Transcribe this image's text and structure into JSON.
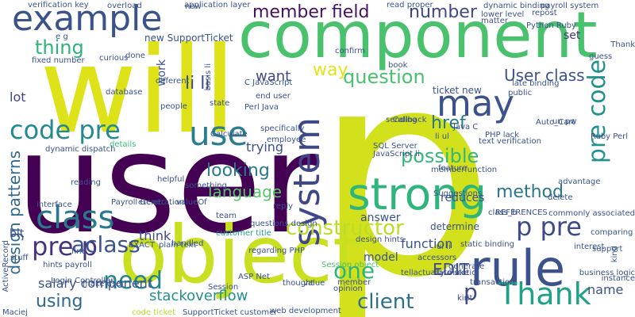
{
  "words": [
    {
      "text": "p",
      "color": "#d2e11b"
    },
    {
      "text": "user",
      "color": "#440154"
    },
    {
      "text": "object",
      "color": "#c8e020"
    },
    {
      "text": "will",
      "color": "#dde318"
    },
    {
      "text": "component",
      "color": "#4ac16d"
    },
    {
      "text": "strong",
      "color": "#2fb47c"
    },
    {
      "text": "rule",
      "color": "#3b528b"
    },
    {
      "text": "may",
      "color": "#3b528b"
    },
    {
      "text": "system",
      "color": "#3f4788"
    },
    {
      "text": "example",
      "color": "#3b528b"
    },
    {
      "text": "class",
      "color": "#2a788e"
    },
    {
      "text": "use",
      "color": "#287d8e"
    },
    {
      "text": "Thank",
      "color": "#1fa187"
    },
    {
      "text": "p pre",
      "color": "#3e4989"
    },
    {
      "text": "pre code",
      "color": "#21918c"
    },
    {
      "text": "code pre",
      "color": "#238a8d"
    },
    {
      "text": "constructor",
      "color": "#bade28"
    },
    {
      "text": "pre p",
      "color": "#46337e"
    },
    {
      "text": "need",
      "color": "#25858e"
    },
    {
      "text": "one",
      "color": "#2fb47c"
    },
    {
      "text": "client",
      "color": "#2d708e"
    },
    {
      "text": "p",
      "color": "#3e4989"
    },
    {
      "text": "question",
      "color": "#4ac16d"
    },
    {
      "text": "possible",
      "color": "#35b779"
    },
    {
      "text": "thing",
      "color": "#2fb47c"
    },
    {
      "text": "aclass",
      "color": "#3b528b"
    },
    {
      "text": "using",
      "color": "#31688e"
    },
    {
      "text": "design patterns",
      "color": "#31688e"
    },
    {
      "text": "member field",
      "color": "#471063"
    },
    {
      "text": "number",
      "color": "#3f4788"
    },
    {
      "text": "li li",
      "color": "#3e4989"
    },
    {
      "text": "language",
      "color": "#54c568"
    },
    {
      "text": "method",
      "color": "#2a788e"
    },
    {
      "text": "looking",
      "color": "#2a788e"
    },
    {
      "text": "href",
      "color": "#2a788e"
    },
    {
      "text": "User class",
      "color": "#3b528b"
    },
    {
      "text": "way",
      "color": "#e5e419"
    },
    {
      "text": "want",
      "color": "#3f4788"
    },
    {
      "text": "EDIT",
      "color": "#3e4989"
    },
    {
      "text": "function",
      "color": "#3b528b"
    },
    {
      "text": "salary component",
      "color": "#3b528b"
    },
    {
      "text": "stackoverflow",
      "color": "#21918c"
    },
    {
      "text": "name",
      "color": "#3b528b"
    },
    {
      "text": "lot",
      "color": "#3f4788"
    },
    {
      "text": "set",
      "color": "#46337e"
    },
    {
      "text": "bit",
      "color": "#3f4788"
    },
    {
      "text": "work",
      "color": "#3b528b"
    },
    {
      "text": "model",
      "color": "#3b528b"
    },
    {
      "text": "think",
      "color": "#3f4788"
    },
    {
      "text": "answer",
      "color": "#3b528b"
    },
    {
      "text": "reduces",
      "color": "#3b528b"
    },
    {
      "text": "trying",
      "color": "#3b528b"
    },
    {
      "text": "ticket new",
      "color": "#3b528b"
    },
    {
      "text": "determine",
      "color": "#3b528b"
    },
    {
      "text": "new SupportTicket",
      "color": "#3b528b"
    },
    {
      "text": "application layer",
      "color": "#3b528b"
    },
    {
      "text": "verification key",
      "color": "#3b528b"
    },
    {
      "text": "fixed number",
      "color": "#3b528b"
    },
    {
      "text": "Payroll Generation",
      "color": "#3b528b"
    },
    {
      "text": "ul li",
      "color": "#3b528b"
    },
    {
      "text": "li ul",
      "color": "#3b528b"
    },
    {
      "text": "code ticket",
      "color": "#b5de2b"
    },
    {
      "text": "Session object",
      "color": "#4ac16d"
    },
    {
      "text": "customer title",
      "color": "#1f9e89"
    },
    {
      "text": "people",
      "color": "#3b528b"
    },
    {
      "text": "state",
      "color": "#3b528b"
    },
    {
      "text": "different",
      "color": "#3b528b"
    },
    {
      "text": "details",
      "color": "#35b779"
    },
    {
      "text": "dynamic dispatch",
      "color": "#3b528b"
    },
    {
      "text": "Calculate",
      "color": "#3b528b"
    },
    {
      "text": "team",
      "color": "#3b528b"
    },
    {
      "text": "helpful",
      "color": "#3b528b"
    },
    {
      "text": "interface",
      "color": "#3b528b"
    },
    {
      "text": "reading",
      "color": "#3b528b"
    },
    {
      "text": "end user",
      "color": "#3b528b"
    },
    {
      "text": "Callback",
      "color": "#3b528b"
    },
    {
      "text": "Java C",
      "color": "#3b528b"
    },
    {
      "text": "SQL Server",
      "color": "#3b528b"
    },
    {
      "text": "Perl Java",
      "color": "#3b528b"
    },
    {
      "text": "specifically",
      "color": "#3b528b"
    },
    {
      "text": "employee",
      "color": "#3b528b"
    },
    {
      "text": "etc etc",
      "color": "#3b528b"
    },
    {
      "text": "valueOf",
      "color": "#3b528b"
    },
    {
      "text": "something",
      "color": "#3b528b"
    },
    {
      "text": "Suggestions",
      "color": "#3b528b"
    },
    {
      "text": "questions design",
      "color": "#3b528b"
    },
    {
      "text": "handled",
      "color": "#3b528b"
    },
    {
      "text": "EXACT",
      "color": "#3b528b"
    },
    {
      "text": "design hints",
      "color": "#3b528b"
    },
    {
      "text": "hints payroll",
      "color": "#3b528b"
    },
    {
      "text": "ActiveRecord",
      "color": "#3b528b"
    },
    {
      "text": "SupportTicket customer",
      "color": "#3b528b"
    },
    {
      "text": "thought",
      "color": "#3b528b"
    },
    {
      "text": "member",
      "color": "#3b528b"
    },
    {
      "text": "opinion",
      "color": "#3b528b"
    },
    {
      "text": "sending",
      "color": "#3b528b"
    },
    {
      "text": "un pw",
      "color": "#3b528b"
    },
    {
      "text": "Ruby Perl",
      "color": "#3b528b"
    },
    {
      "text": "Auto_Cart",
      "color": "#3b528b"
    },
    {
      "text": "late binding",
      "color": "#3b528b"
    },
    {
      "text": "dynamic binding",
      "color": "#3b528b"
    },
    {
      "text": "payroll system",
      "color": "#3b528b"
    },
    {
      "text": "repost",
      "color": "#3b528b"
    },
    {
      "text": "lower level",
      "color": "#3b528b"
    },
    {
      "text": "Python Ruby",
      "color": "#3b528b"
    },
    {
      "text": "read proper",
      "color": "#3b528b"
    },
    {
      "text": "overload",
      "color": "#3b528b"
    },
    {
      "text": "now",
      "color": "#3b528b"
    },
    {
      "text": "matter",
      "color": "#3b528b"
    },
    {
      "text": "confirm",
      "color": "#3b528b"
    },
    {
      "text": "guess",
      "color": "#3b528b"
    },
    {
      "text": "book",
      "color": "#3b528b"
    },
    {
      "text": "curious",
      "color": "#3b528b"
    },
    {
      "text": "done",
      "color": "#3b528b"
    },
    {
      "text": "basis li",
      "color": "#3b528b"
    },
    {
      "text": "e g",
      "color": "#3b528b"
    },
    {
      "text": "database",
      "color": "#3b528b"
    },
    {
      "text": "public",
      "color": "#3b528b"
    },
    {
      "text": "C JavaScript",
      "color": "#3b528b"
    },
    {
      "text": "PHP lack",
      "color": "#3b528b"
    },
    {
      "text": "text verification",
      "color": "#3b528b"
    },
    {
      "text": "JavaScript li",
      "color": "#3b528b"
    },
    {
      "text": "memberfunction",
      "color": "#3b528b"
    },
    {
      "text": "commonly associated",
      "color": "#3b528b"
    },
    {
      "text": "comparing",
      "color": "#3b528b"
    },
    {
      "text": "support",
      "color": "#3b528b"
    },
    {
      "text": "interest",
      "color": "#3b528b"
    },
    {
      "text": "REFERENCES",
      "color": "#3b528b"
    },
    {
      "text": "class_b",
      "color": "#3b528b"
    },
    {
      "text": "static binding",
      "color": "#3b528b"
    },
    {
      "text": "generate",
      "color": "#3b528b"
    },
    {
      "text": "tellactually make",
      "color": "#3b528b"
    },
    {
      "text": "late static",
      "color": "#3b528b"
    },
    {
      "text": "regarding PHP",
      "color": "#3b528b"
    },
    {
      "text": "ASP Net",
      "color": "#3b528b"
    },
    {
      "text": "plain text",
      "color": "#3b528b"
    },
    {
      "text": "Login Controller",
      "color": "#3b528b"
    },
    {
      "text": "make use",
      "color": "#3b528b"
    },
    {
      "text": "Session",
      "color": "#3b528b"
    },
    {
      "text": "Maciej",
      "color": "#3b528b"
    },
    {
      "text": "web development",
      "color": "#3b528b"
    },
    {
      "text": "business logic",
      "color": "#3b528b"
    },
    {
      "text": "instance",
      "color": "#3b528b"
    },
    {
      "text": "kind",
      "color": "#3b528b"
    },
    {
      "text": "delete",
      "color": "#3b528b"
    },
    {
      "text": "advantage",
      "color": "#3b528b"
    },
    {
      "text": "feature",
      "color": "#3b528b"
    },
    {
      "text": "accessors",
      "color": "#3b528b"
    },
    {
      "text": "transaction",
      "color": "#3b528b"
    },
    {
      "text": "Thank",
      "color": "#3b528b"
    },
    {
      "text": "stuff",
      "color": "#3b528b"
    },
    {
      "text": "reply",
      "color": "#3b528b"
    },
    {
      "text": "value",
      "color": "#3b528b"
    },
    {
      "text": "kirit",
      "color": "#3b528b"
    },
    {
      "text": "fine",
      "color": "#3b528b"
    },
    {
      "text": "lately",
      "color": "#3b528b"
    }
  ]
}
